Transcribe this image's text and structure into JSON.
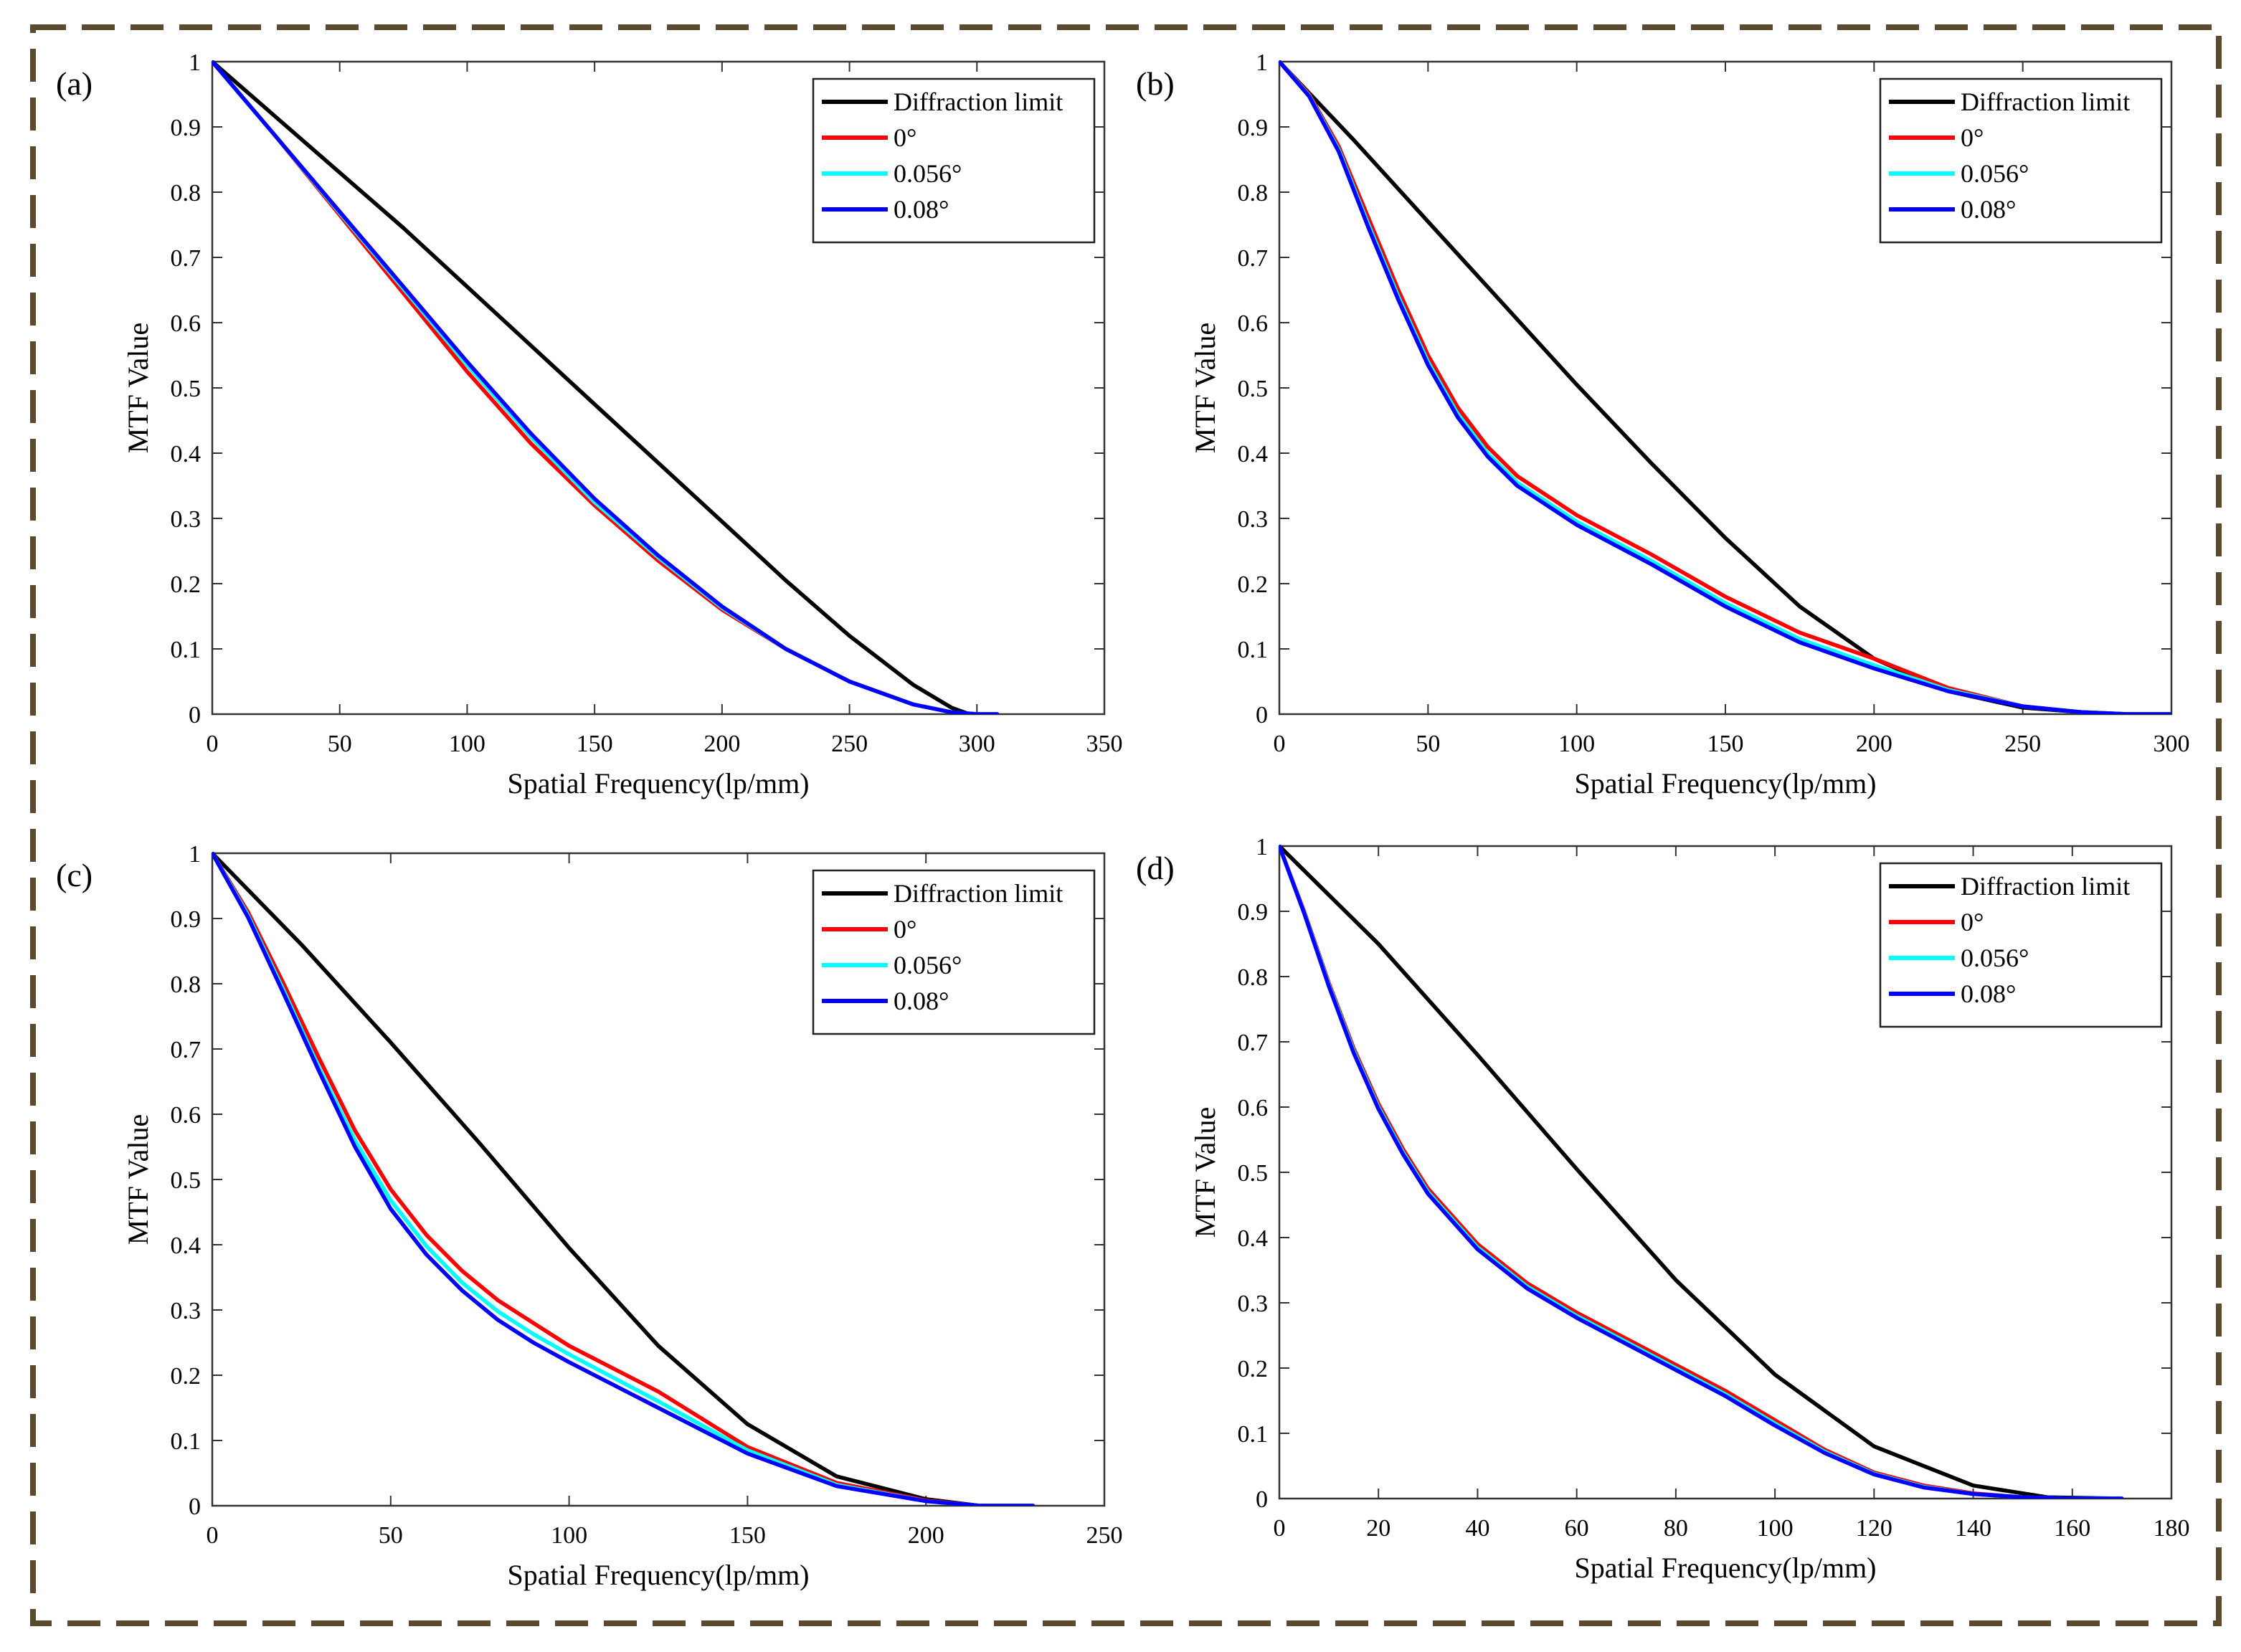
{
  "border_color": "#5c4a2e",
  "chart_data": [
    {
      "panel_label": "(a)",
      "type": "line",
      "xlabel": "Spatial Frequency(lp/mm)",
      "ylabel": "MTF Value",
      "xlim": [
        0,
        350
      ],
      "ylim": [
        0,
        1
      ],
      "xticks": [
        "0",
        "50",
        "100",
        "150",
        "200",
        "250",
        "300",
        "350"
      ],
      "yticks": [
        "0",
        "0.1",
        "0.2",
        "0.3",
        "0.4",
        "0.5",
        "0.6",
        "0.7",
        "0.8",
        "0.9",
        "1"
      ],
      "legend_position": "top-right",
      "series": [
        {
          "name": "Diffraction limit",
          "color": "#000000",
          "x": [
            0,
            25,
            50,
            75,
            100,
            125,
            150,
            175,
            200,
            225,
            250,
            275,
            290,
            297
          ],
          "y": [
            1.0,
            0.915,
            0.83,
            0.745,
            0.655,
            0.565,
            0.475,
            0.385,
            0.295,
            0.205,
            0.12,
            0.045,
            0.01,
            0.0
          ]
        },
        {
          "name": "0°",
          "color": "#ff0000",
          "x": [
            0,
            25,
            50,
            75,
            100,
            125,
            150,
            175,
            200,
            225,
            250,
            275,
            290,
            300,
            308
          ],
          "y": [
            1.0,
            0.885,
            0.765,
            0.645,
            0.525,
            0.415,
            0.32,
            0.235,
            0.16,
            0.1,
            0.05,
            0.015,
            0.003,
            0.0,
            0.0
          ]
        },
        {
          "name": "0.056°",
          "color": "#00ffff",
          "x": [
            0,
            25,
            50,
            75,
            100,
            125,
            150,
            175,
            200,
            225,
            250,
            275,
            290,
            300,
            308
          ],
          "y": [
            1.0,
            0.885,
            0.768,
            0.652,
            0.535,
            0.425,
            0.325,
            0.24,
            0.163,
            0.1,
            0.05,
            0.015,
            0.003,
            0.0,
            0.0
          ]
        },
        {
          "name": "0.08°",
          "color": "#0000ff",
          "x": [
            0,
            25,
            50,
            75,
            100,
            125,
            150,
            175,
            200,
            225,
            250,
            275,
            290,
            300,
            308
          ],
          "y": [
            1.0,
            0.885,
            0.77,
            0.655,
            0.54,
            0.43,
            0.33,
            0.243,
            0.165,
            0.1,
            0.05,
            0.015,
            0.003,
            0.0,
            0.0
          ]
        }
      ]
    },
    {
      "panel_label": "(b)",
      "type": "line",
      "xlabel": "Spatial Frequency(lp/mm)",
      "ylabel": "MTF Value",
      "xlim": [
        0,
        300
      ],
      "ylim": [
        0,
        1
      ],
      "xticks": [
        "0",
        "50",
        "100",
        "150",
        "200",
        "250",
        "300"
      ],
      "yticks": [
        "0",
        "0.1",
        "0.2",
        "0.3",
        "0.4",
        "0.5",
        "0.6",
        "0.7",
        "0.8",
        "0.9",
        "1"
      ],
      "legend_position": "top-right",
      "series": [
        {
          "name": "Diffraction limit",
          "color": "#000000",
          "x": [
            0,
            25,
            50,
            75,
            100,
            125,
            150,
            175,
            200,
            225,
            250,
            270,
            285,
            300
          ],
          "y": [
            1.0,
            0.88,
            0.755,
            0.63,
            0.505,
            0.385,
            0.27,
            0.165,
            0.085,
            0.035,
            0.01,
            0.003,
            0.0,
            0.0
          ]
        },
        {
          "name": "0°",
          "color": "#ff0000",
          "x": [
            0,
            10,
            20,
            30,
            40,
            50,
            60,
            70,
            80,
            100,
            125,
            150,
            175,
            200,
            225,
            250,
            270,
            285,
            300
          ],
          "y": [
            1.0,
            0.95,
            0.87,
            0.76,
            0.65,
            0.55,
            0.47,
            0.41,
            0.365,
            0.305,
            0.245,
            0.18,
            0.125,
            0.085,
            0.04,
            0.012,
            0.003,
            0.0,
            0.0
          ]
        },
        {
          "name": "0.056°",
          "color": "#00ffff",
          "x": [
            0,
            10,
            20,
            30,
            40,
            50,
            60,
            70,
            80,
            100,
            125,
            150,
            175,
            200,
            225,
            250,
            270,
            285,
            300
          ],
          "y": [
            1.0,
            0.948,
            0.865,
            0.75,
            0.64,
            0.54,
            0.46,
            0.4,
            0.355,
            0.295,
            0.235,
            0.17,
            0.115,
            0.075,
            0.037,
            0.012,
            0.003,
            0.0,
            0.0
          ]
        },
        {
          "name": "0.08°",
          "color": "#0000ff",
          "x": [
            0,
            10,
            20,
            30,
            40,
            50,
            60,
            70,
            80,
            100,
            125,
            150,
            175,
            200,
            225,
            250,
            270,
            285,
            300
          ],
          "y": [
            1.0,
            0.947,
            0.862,
            0.745,
            0.635,
            0.535,
            0.455,
            0.395,
            0.35,
            0.29,
            0.23,
            0.165,
            0.11,
            0.07,
            0.035,
            0.012,
            0.003,
            0.0,
            0.0
          ]
        }
      ]
    },
    {
      "panel_label": "(c)",
      "type": "line",
      "xlabel": "Spatial Frequency(lp/mm)",
      "ylabel": "MTF Value",
      "xlim": [
        0,
        250
      ],
      "ylim": [
        0,
        1
      ],
      "xticks": [
        "0",
        "50",
        "100",
        "150",
        "200",
        "250"
      ],
      "yticks": [
        "0",
        "0.1",
        "0.2",
        "0.3",
        "0.4",
        "0.5",
        "0.6",
        "0.7",
        "0.8",
        "0.9",
        "1"
      ],
      "legend_position": "top-right",
      "series": [
        {
          "name": "Diffraction limit",
          "color": "#000000",
          "x": [
            0,
            25,
            50,
            75,
            100,
            125,
            150,
            175,
            200,
            215,
            230
          ],
          "y": [
            1.0,
            0.86,
            0.71,
            0.555,
            0.395,
            0.245,
            0.125,
            0.045,
            0.01,
            0.0,
            0.0
          ]
        },
        {
          "name": "0°",
          "color": "#ff0000",
          "x": [
            0,
            10,
            20,
            30,
            40,
            50,
            60,
            70,
            80,
            90,
            100,
            125,
            150,
            175,
            200,
            215,
            230
          ],
          "y": [
            1.0,
            0.91,
            0.8,
            0.685,
            0.575,
            0.485,
            0.415,
            0.36,
            0.315,
            0.28,
            0.245,
            0.175,
            0.09,
            0.035,
            0.008,
            0.0,
            0.0
          ]
        },
        {
          "name": "0.056°",
          "color": "#00ffff",
          "x": [
            0,
            10,
            20,
            30,
            40,
            50,
            60,
            70,
            80,
            90,
            100,
            125,
            150,
            175,
            200,
            215,
            230
          ],
          "y": [
            1.0,
            0.905,
            0.79,
            0.67,
            0.56,
            0.468,
            0.398,
            0.342,
            0.298,
            0.263,
            0.232,
            0.16,
            0.085,
            0.032,
            0.007,
            0.0,
            0.0
          ]
        },
        {
          "name": "0.08°",
          "color": "#0000ff",
          "x": [
            0,
            10,
            20,
            30,
            40,
            50,
            60,
            70,
            80,
            90,
            100,
            125,
            150,
            175,
            200,
            215,
            230
          ],
          "y": [
            1.0,
            0.902,
            0.785,
            0.665,
            0.55,
            0.455,
            0.385,
            0.33,
            0.285,
            0.25,
            0.22,
            0.15,
            0.08,
            0.03,
            0.007,
            0.0,
            0.0
          ]
        }
      ]
    },
    {
      "panel_label": "(d)",
      "type": "line",
      "xlabel": "Spatial Frequency(lp/mm)",
      "ylabel": "MTF Value",
      "xlim": [
        0,
        180
      ],
      "ylim": [
        0,
        1
      ],
      "xticks": [
        "0",
        "20",
        "40",
        "60",
        "80",
        "100",
        "120",
        "140",
        "160",
        "180"
      ],
      "yticks": [
        "0",
        "0.1",
        "0.2",
        "0.3",
        "0.4",
        "0.5",
        "0.6",
        "0.7",
        "0.8",
        "0.9",
        "1"
      ],
      "legend_position": "top-right",
      "series": [
        {
          "name": "Diffraction limit",
          "color": "#000000",
          "x": [
            0,
            20,
            40,
            60,
            80,
            100,
            120,
            140,
            155,
            170
          ],
          "y": [
            1.0,
            0.85,
            0.68,
            0.505,
            0.335,
            0.19,
            0.08,
            0.02,
            0.002,
            0.0
          ]
        },
        {
          "name": "0°",
          "color": "#ff0000",
          "x": [
            0,
            5,
            10,
            15,
            20,
            25,
            30,
            40,
            50,
            60,
            70,
            80,
            90,
            100,
            110,
            120,
            130,
            140,
            150,
            160,
            170
          ],
          "y": [
            1.0,
            0.9,
            0.79,
            0.69,
            0.605,
            0.535,
            0.475,
            0.39,
            0.33,
            0.285,
            0.245,
            0.205,
            0.165,
            0.12,
            0.075,
            0.04,
            0.02,
            0.008,
            0.002,
            0.0,
            0.0
          ]
        },
        {
          "name": "0.056°",
          "color": "#00ffff",
          "x": [
            0,
            5,
            10,
            15,
            20,
            25,
            30,
            40,
            50,
            60,
            70,
            80,
            90,
            100,
            110,
            120,
            130,
            140,
            150,
            160,
            170
          ],
          "y": [
            1.0,
            0.898,
            0.787,
            0.686,
            0.6,
            0.53,
            0.47,
            0.385,
            0.325,
            0.28,
            0.24,
            0.2,
            0.16,
            0.115,
            0.072,
            0.038,
            0.018,
            0.007,
            0.002,
            0.0,
            0.0
          ]
        },
        {
          "name": "0.08°",
          "color": "#0000ff",
          "x": [
            0,
            5,
            10,
            15,
            20,
            25,
            30,
            40,
            50,
            60,
            70,
            80,
            90,
            100,
            110,
            120,
            130,
            140,
            150,
            160,
            170
          ],
          "y": [
            1.0,
            0.897,
            0.785,
            0.683,
            0.597,
            0.527,
            0.467,
            0.382,
            0.322,
            0.277,
            0.237,
            0.197,
            0.157,
            0.112,
            0.07,
            0.037,
            0.017,
            0.007,
            0.002,
            0.0,
            0.0
          ]
        }
      ]
    }
  ]
}
